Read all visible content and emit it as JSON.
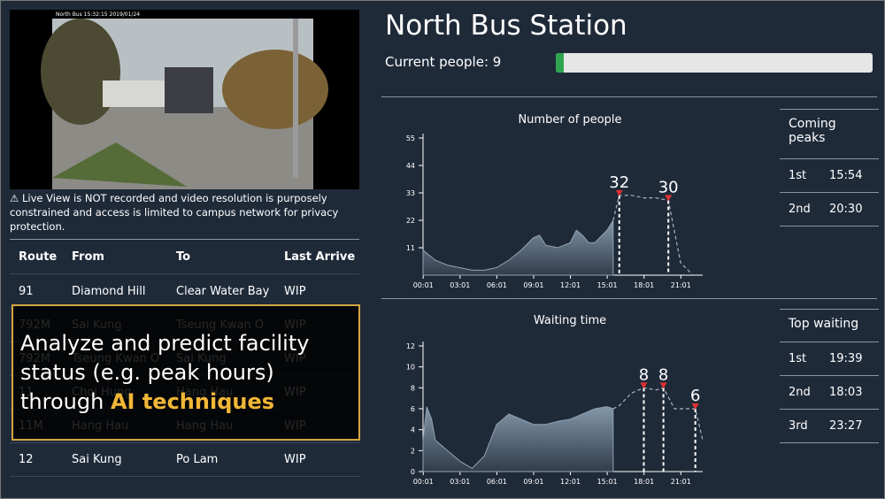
{
  "header": {
    "title": "North Bus Station",
    "current_people_label": "Current people:",
    "current_people": 9
  },
  "live_view": {
    "caption": "North Bus 15:32:15 2019/01/24",
    "warning": "⚠ Live View is NOT recorded and video resolution is purposely constrained and access is limited to campus network for privacy protection."
  },
  "table": {
    "header": [
      "Route",
      "From",
      "To",
      "Last Arrive"
    ],
    "rows": [
      [
        "91",
        "Diamond Hill",
        "Clear Water Bay",
        "WIP"
      ],
      [
        "792M",
        "Sai Kung",
        "Tseung Kwan O",
        "WIP"
      ],
      [
        "792M",
        "Tseung Kwan O",
        "Sai Kung",
        "WIP"
      ],
      [
        "11",
        "Choi Hung",
        "Hang Hau",
        "WIP"
      ],
      [
        "11M",
        "Hang Hau",
        "Hang Hau",
        "WIP"
      ],
      [
        "12",
        "Sai Kung",
        "Po Lam",
        "WIP"
      ]
    ]
  },
  "overlay": {
    "text": "Analyze and predict facility status (e.g. peak hours) through",
    "highlight": "AI techniques"
  },
  "chart_data": [
    {
      "type": "area",
      "title": "Number of people",
      "xlim": [
        0,
        22.8
      ],
      "ylim": [
        0,
        55
      ],
      "yticks": [
        11,
        22,
        33,
        44,
        55
      ],
      "xticks": [
        {
          "value": 0.0167,
          "label": "00:01"
        },
        {
          "value": 3.0167,
          "label": "03:01"
        },
        {
          "value": 6.0167,
          "label": "06:01"
        },
        {
          "value": 9.0167,
          "label": "09:01"
        },
        {
          "value": 12.0167,
          "label": "12:01"
        },
        {
          "value": 15.0167,
          "label": "15:01"
        },
        {
          "value": 18.0167,
          "label": "18:01"
        },
        {
          "value": 21.0167,
          "label": "21:01"
        }
      ],
      "actual": {
        "color": "#8fa3b5",
        "x": [
          0,
          0.5,
          1,
          2,
          3,
          4,
          5,
          6,
          7,
          8,
          9,
          9.5,
          10,
          11,
          12,
          12.5,
          13,
          13.5,
          14,
          15,
          15.5
        ],
        "values": [
          10,
          8,
          6,
          4,
          3,
          2,
          2,
          3,
          6,
          10,
          15,
          16,
          12,
          11,
          13,
          18,
          16,
          13,
          13,
          18,
          22
        ]
      },
      "forecast": {
        "color": "#aab4bf",
        "x": [
          15.5,
          16,
          17,
          18,
          19,
          20,
          21,
          22
        ],
        "values": [
          22,
          32,
          32,
          31,
          31,
          30,
          5,
          0
        ]
      },
      "peaks": [
        {
          "x": 16,
          "value": 32
        },
        {
          "x": 20,
          "value": 30
        }
      ]
    },
    {
      "type": "area",
      "title": "Waiting time",
      "xlim": [
        0,
        22.8
      ],
      "ylim": [
        0,
        12
      ],
      "yticks": [
        0,
        2,
        4,
        6,
        8,
        10,
        12
      ],
      "xticks": [
        {
          "value": 0.0167,
          "label": "00:01"
        },
        {
          "value": 3.0167,
          "label": "03:01"
        },
        {
          "value": 6.0167,
          "label": "06:01"
        },
        {
          "value": 9.0167,
          "label": "09:01"
        },
        {
          "value": 12.0167,
          "label": "12:01"
        },
        {
          "value": 15.0167,
          "label": "15:01"
        },
        {
          "value": 18.0167,
          "label": "18:01"
        },
        {
          "value": 21.0167,
          "label": "21:01"
        }
      ],
      "actual": {
        "color": "#8fa3b5",
        "x": [
          0,
          0.3,
          0.7,
          1,
          2,
          3,
          4,
          5,
          6,
          7,
          8,
          9,
          10,
          11,
          12,
          13,
          14,
          15,
          15.5
        ],
        "values": [
          3,
          6.2,
          5,
          3,
          2,
          1,
          0.3,
          1.5,
          4.5,
          5.5,
          5,
          4.5,
          4.5,
          4.8,
          5,
          5.5,
          6,
          6.2,
          6
        ]
      },
      "forecast": {
        "color": "#aab4bf",
        "x": [
          15.5,
          16,
          17,
          18,
          19,
          19.6,
          20.5,
          21.5,
          22.2,
          22.8
        ],
        "values": [
          6,
          6.3,
          7.5,
          8,
          7.8,
          8,
          6,
          6,
          6,
          3
        ]
      },
      "peaks": [
        {
          "x": 18,
          "value": 8
        },
        {
          "x": 19.6,
          "value": 8
        },
        {
          "x": 22.2,
          "value": 6
        }
      ]
    }
  ],
  "right_panels": [
    {
      "title": "Coming peaks",
      "rows": [
        [
          "1st",
          "15:54"
        ],
        [
          "2nd",
          "20:30"
        ]
      ]
    },
    {
      "title": "Top waiting",
      "rows": [
        [
          "1st",
          "19:39"
        ],
        [
          "2nd",
          "18:03"
        ],
        [
          "3rd",
          "23:27"
        ]
      ]
    }
  ]
}
